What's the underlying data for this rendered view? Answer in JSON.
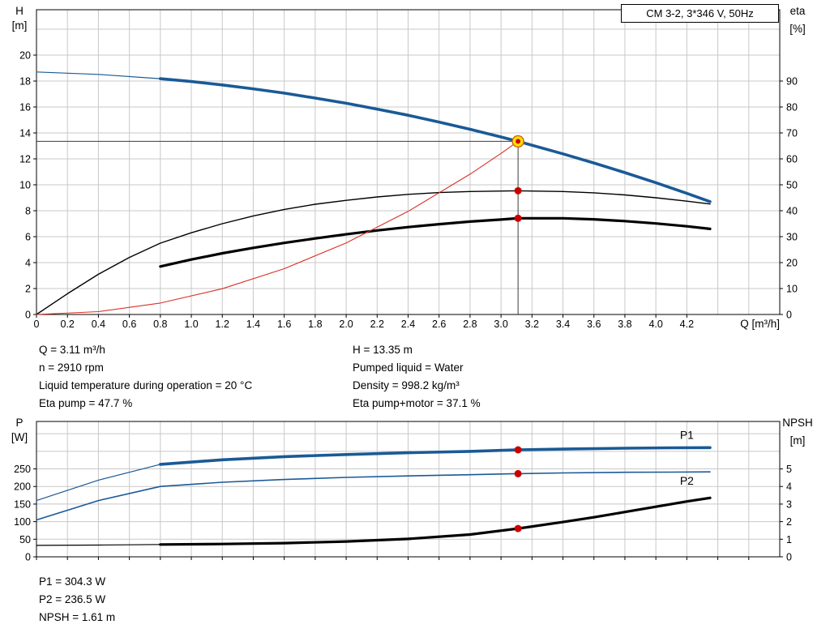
{
  "header": {
    "title_box": "CM 3-2, 3*346 V, 50Hz"
  },
  "colors": {
    "blue": "#1A5A96",
    "red": "#D93025",
    "dot": "#CC0000",
    "duty_fill": "#FFDE00",
    "duty_ring": "#CC6600",
    "grid": "#C8C8C8",
    "crosshair": "#3C3C3C"
  },
  "info_top": {
    "left": [
      "Q = 3.11 m³/h",
      "n = 2910 rpm",
      "Liquid temperature during operation = 20 °C",
      "Eta pump = 47.7 %"
    ],
    "right": [
      "H = 13.35 m",
      "Pumped liquid = Water",
      "Density = 998.2 kg/m³",
      "Eta pump+motor = 37.1 %"
    ]
  },
  "info_bottom": [
    "P1 = 304.3 W",
    "P2 = 236.5 W",
    "NPSH = 1.61 m"
  ],
  "chart_data": [
    {
      "type": "line",
      "name": "qh-efficiency-chart",
      "title": "CM 3-2, 3*346 V, 50Hz",
      "x": {
        "min": 0,
        "max": 4.8,
        "grid_step": 0.2,
        "label": "Q [m³/h]",
        "ticks": [
          0,
          0.2,
          0.4,
          0.6,
          0.8,
          1.0,
          1.2,
          1.4,
          1.6,
          1.8,
          2.0,
          2.2,
          2.4,
          2.6,
          2.8,
          3.0,
          3.2,
          3.4,
          3.6,
          3.8,
          4.0,
          4.2
        ],
        "tick_labels": [
          "0",
          "0.2",
          "0.4",
          "0.6",
          "0.8",
          "1.0",
          "1.2",
          "1.4",
          "1.6",
          "1.8",
          "2.0",
          "2.2",
          "2.4",
          "2.6",
          "2.8",
          "3.0",
          "3.2",
          "3.4",
          "3.6",
          "3.8",
          "4.0",
          "4.2"
        ]
      },
      "y_left": {
        "min": 0,
        "max": 23.5,
        "grid_step": 2,
        "title": [
          "H",
          "[m]"
        ],
        "ticks": [
          0,
          2,
          4,
          6,
          8,
          10,
          12,
          14,
          16,
          18,
          20
        ],
        "tick_labels": [
          "0",
          "2",
          "4",
          "6",
          "8",
          "10",
          "12",
          "14",
          "16",
          "18",
          "20"
        ]
      },
      "y_right": {
        "min": 0,
        "max": 117.5,
        "title": [
          "eta",
          "[%]"
        ],
        "ticks": [
          0,
          10,
          20,
          30,
          40,
          50,
          60,
          70,
          80,
          90
        ],
        "tick_labels": [
          "0",
          "10",
          "20",
          "30",
          "40",
          "50",
          "60",
          "70",
          "80",
          "90"
        ]
      },
      "crosshair": {
        "x": 3.11,
        "y": 13.35,
        "axis": "left"
      },
      "series": [
        {
          "name": "pump-curve-lead",
          "axis": "left",
          "color": "#1A5A96",
          "width": 1.2,
          "points": [
            [
              0,
              18.7
            ],
            [
              0.4,
              18.51
            ],
            [
              0.8,
              18.18
            ]
          ]
        },
        {
          "name": "pump-curve",
          "axis": "left",
          "color": "#1A5A96",
          "width": 3.6,
          "points": [
            [
              0.8,
              18.18
            ],
            [
              1.0,
              17.96
            ],
            [
              1.2,
              17.7
            ],
            [
              1.4,
              17.4
            ],
            [
              1.6,
              17.07
            ],
            [
              1.8,
              16.69
            ],
            [
              2.0,
              16.29
            ],
            [
              2.2,
              15.84
            ],
            [
              2.4,
              15.36
            ],
            [
              2.6,
              14.84
            ],
            [
              2.8,
              14.28
            ],
            [
              3.0,
              13.69
            ],
            [
              3.11,
              13.35
            ],
            [
              3.4,
              12.39
            ],
            [
              3.6,
              11.68
            ],
            [
              3.8,
              10.94
            ],
            [
              4.0,
              10.16
            ],
            [
              4.2,
              9.34
            ],
            [
              4.35,
              8.7
            ]
          ]
        },
        {
          "name": "eta-pump-curve",
          "axis": "right",
          "color": "#000000",
          "width": 1.4,
          "points": [
            [
              0,
              0
            ],
            [
              0.2,
              8
            ],
            [
              0.4,
              15.5
            ],
            [
              0.6,
              22
            ],
            [
              0.8,
              27.5
            ],
            [
              1.0,
              31.5
            ],
            [
              1.2,
              35
            ],
            [
              1.4,
              38
            ],
            [
              1.6,
              40.5
            ],
            [
              1.8,
              42.5
            ],
            [
              2.0,
              44
            ],
            [
              2.2,
              45.3
            ],
            [
              2.4,
              46.3
            ],
            [
              2.6,
              47.0
            ],
            [
              2.8,
              47.4
            ],
            [
              3.11,
              47.7
            ],
            [
              3.4,
              47.4
            ],
            [
              3.6,
              46.9
            ],
            [
              3.8,
              46.1
            ],
            [
              4.0,
              45.0
            ],
            [
              4.2,
              43.7
            ],
            [
              4.35,
              42.6
            ]
          ]
        },
        {
          "name": "eta-pump-motor-curve",
          "axis": "right",
          "color": "#000000",
          "width": 3.2,
          "points": [
            [
              0.8,
              18.5
            ],
            [
              1.0,
              21.2
            ],
            [
              1.2,
              23.6
            ],
            [
              1.4,
              25.7
            ],
            [
              1.6,
              27.6
            ],
            [
              1.8,
              29.3
            ],
            [
              2.0,
              30.9
            ],
            [
              2.2,
              32.4
            ],
            [
              2.4,
              33.7
            ],
            [
              2.6,
              34.8
            ],
            [
              2.8,
              35.8
            ],
            [
              3.0,
              36.6
            ],
            [
              3.11,
              37.1
            ],
            [
              3.4,
              37.1
            ],
            [
              3.6,
              36.7
            ],
            [
              3.8,
              36.0
            ],
            [
              4.0,
              35.1
            ],
            [
              4.2,
              34.0
            ],
            [
              4.35,
              33.0
            ]
          ]
        },
        {
          "name": "system-curve",
          "axis": "left",
          "color": "#D93025",
          "width": 1.1,
          "points": [
            [
              0,
              0
            ],
            [
              0.4,
              0.22
            ],
            [
              0.8,
              0.88
            ],
            [
              1.2,
              1.99
            ],
            [
              1.6,
              3.53
            ],
            [
              2.0,
              5.52
            ],
            [
              2.4,
              7.95
            ],
            [
              2.8,
              10.82
            ],
            [
              3.0,
              12.42
            ],
            [
              3.11,
              13.35
            ]
          ]
        }
      ],
      "markers": [
        {
          "type": "duty",
          "axis": "left",
          "x": 3.11,
          "y": 13.35,
          "name": "duty-point-marker"
        },
        {
          "type": "dot",
          "axis": "right",
          "x": 3.11,
          "y": 47.7,
          "name": "eta-pump-point-marker"
        },
        {
          "type": "dot",
          "axis": "right",
          "x": 3.11,
          "y": 37.1,
          "name": "eta-pump-motor-point-marker"
        }
      ],
      "annotations": []
    },
    {
      "type": "line",
      "name": "power-npsh-chart",
      "x": {
        "min": 0,
        "max": 4.8,
        "grid_step": 0.2,
        "label": null,
        "ticks": [
          0,
          0.2,
          0.4,
          0.6,
          0.8,
          1.0,
          1.2,
          1.4,
          1.6,
          1.8,
          2.0,
          2.2,
          2.4,
          2.6,
          2.8,
          3.0,
          3.2,
          3.4,
          3.6,
          3.8,
          4.0,
          4.2,
          4.4,
          4.6
        ],
        "tick_labels": null
      },
      "y_left": {
        "min": 0,
        "max": 385,
        "grid_step": 50,
        "title": [
          "P",
          "[W]"
        ],
        "ticks": [
          0,
          50,
          100,
          150,
          200,
          250
        ],
        "tick_labels": [
          "0",
          "50",
          "100",
          "150",
          "200",
          "250"
        ]
      },
      "y_right": {
        "min": 0,
        "max": 7.7,
        "title": [
          "NPSH",
          "[m]"
        ],
        "ticks": [
          0,
          1,
          2,
          3,
          4,
          5
        ],
        "tick_labels": [
          "0",
          "1",
          "2",
          "3",
          "4",
          "5"
        ]
      },
      "crosshair": null,
      "series": [
        {
          "name": "p1-curve-lead",
          "axis": "left",
          "color": "#1A5A96",
          "width": 1.2,
          "points": [
            [
              0,
              160
            ],
            [
              0.4,
              218
            ],
            [
              0.8,
              263
            ]
          ]
        },
        {
          "name": "p1-curve",
          "axis": "left",
          "color": "#1A5A96",
          "width": 3.6,
          "points": [
            [
              0.8,
              263
            ],
            [
              1.2,
              276
            ],
            [
              1.6,
              285
            ],
            [
              2.0,
              291
            ],
            [
              2.4,
              296
            ],
            [
              2.8,
              300
            ],
            [
              3.11,
              304.3
            ],
            [
              3.4,
              306.5
            ],
            [
              3.8,
              309
            ],
            [
              4.1,
              310
            ],
            [
              4.35,
              310.5
            ]
          ]
        },
        {
          "name": "p2-curve",
          "axis": "left",
          "color": "#1A5A96",
          "width": 1.6,
          "points": [
            [
              0,
              105
            ],
            [
              0.4,
              160
            ],
            [
              0.8,
              200
            ],
            [
              1.2,
              212
            ],
            [
              1.6,
              220
            ],
            [
              2.0,
              226
            ],
            [
              2.4,
              230
            ],
            [
              2.8,
              233.5
            ],
            [
              3.11,
              236.5
            ],
            [
              3.4,
              238.5
            ],
            [
              3.8,
              240.5
            ],
            [
              4.1,
              241
            ],
            [
              4.35,
              241.5
            ]
          ]
        },
        {
          "name": "npsh-curve-lead",
          "axis": "right",
          "color": "#000000",
          "width": 1.2,
          "points": [
            [
              0,
              0.65
            ],
            [
              0.4,
              0.67
            ],
            [
              0.8,
              0.7
            ]
          ]
        },
        {
          "name": "npsh-curve",
          "axis": "right",
          "color": "#000000",
          "width": 3.2,
          "points": [
            [
              0.8,
              0.7
            ],
            [
              1.2,
              0.73
            ],
            [
              1.6,
              0.78
            ],
            [
              2.0,
              0.87
            ],
            [
              2.4,
              1.02
            ],
            [
              2.8,
              1.27
            ],
            [
              3.11,
              1.61
            ],
            [
              3.4,
              1.98
            ],
            [
              3.6,
              2.25
            ],
            [
              3.8,
              2.55
            ],
            [
              4.0,
              2.85
            ],
            [
              4.2,
              3.15
            ],
            [
              4.35,
              3.35
            ]
          ]
        }
      ],
      "markers": [
        {
          "type": "dot",
          "axis": "left",
          "x": 3.11,
          "y": 304.3,
          "name": "p1-point-marker"
        },
        {
          "type": "dot",
          "axis": "left",
          "x": 3.11,
          "y": 236.5,
          "name": "p2-point-marker"
        },
        {
          "type": "dot",
          "axis": "right",
          "x": 3.11,
          "y": 1.61,
          "name": "npsh-point-marker"
        }
      ],
      "annotations": [
        {
          "text": "P1",
          "axis": "left",
          "x": 4.2,
          "y": 335,
          "color": "#1A5A96",
          "name": "p1-series-label"
        },
        {
          "text": "P2",
          "axis": "left",
          "x": 4.2,
          "y": 205,
          "color": "#1A5A96",
          "name": "p2-series-label"
        }
      ]
    }
  ]
}
